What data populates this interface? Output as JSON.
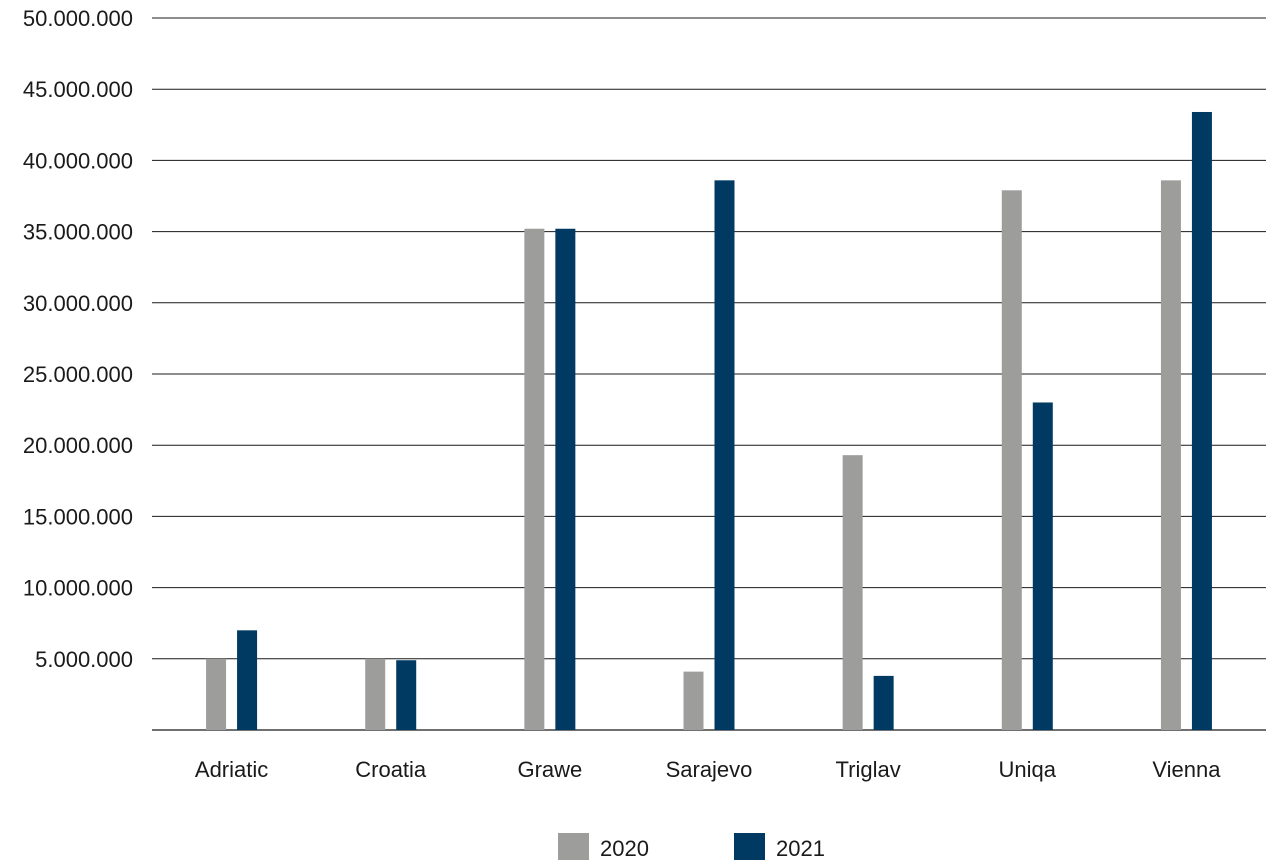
{
  "chart_data": {
    "type": "bar",
    "title": "",
    "xlabel": "",
    "ylabel": "",
    "categories": [
      "Adriatic",
      "Croatia",
      "Grawe",
      "Sarajevo",
      "Triglav",
      "Uniqa",
      "Vienna"
    ],
    "series": [
      {
        "name": "2020",
        "color": "#9d9d9c",
        "values": [
          5000000,
          5000000,
          35200000,
          4100000,
          19300000,
          37900000,
          38600000
        ]
      },
      {
        "name": "2021",
        "color": "#003a63",
        "values": [
          7000000,
          4900000,
          35200000,
          38600000,
          3800000,
          23000000,
          43400000
        ]
      }
    ],
    "ylim": [
      0,
      50000000
    ],
    "yticks": [
      5000000,
      10000000,
      15000000,
      20000000,
      25000000,
      30000000,
      35000000,
      40000000,
      45000000,
      50000000
    ],
    "ytick_labels": [
      "5.000.000",
      "10.000.000",
      "15.000.000",
      "20.000.000",
      "25.000.000",
      "30.000.000",
      "35.000.000",
      "40.000.000",
      "45.000.000",
      "50.000.000"
    ],
    "grid": true,
    "gridline_color": "#1a1a1a",
    "legend_position": "bottom-center"
  }
}
